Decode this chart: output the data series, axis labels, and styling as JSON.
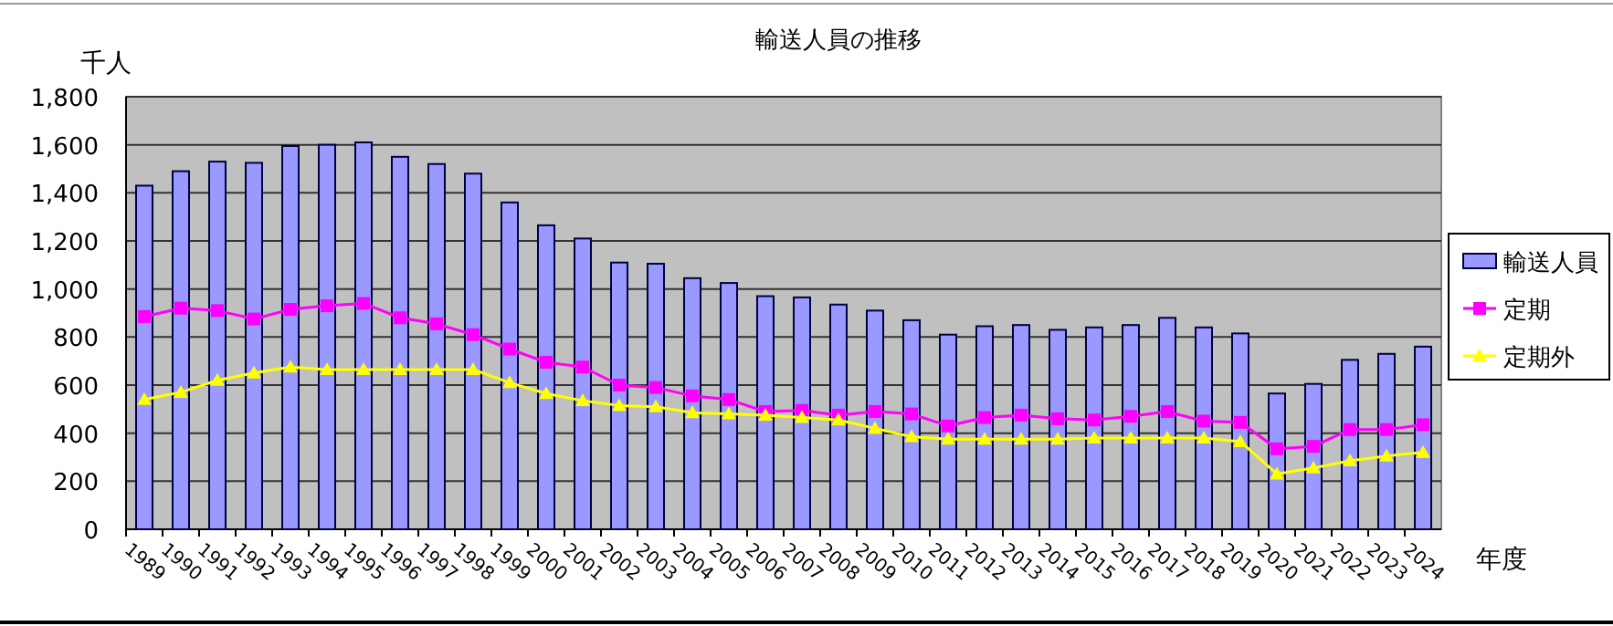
{
  "chart_data": {
    "type": "bar",
    "title": "輸送人員の推移",
    "ylabel": "千人",
    "xlabel": "年度",
    "categories": [
      "1989",
      "1990",
      "1991",
      "1992",
      "1993",
      "1994",
      "1995",
      "1996",
      "1997",
      "1998",
      "1999",
      "2000",
      "2001",
      "2002",
      "2003",
      "2004",
      "2005",
      "2006",
      "2007",
      "2008",
      "2009",
      "2010",
      "2011",
      "2012",
      "2013",
      "2014",
      "2015",
      "2016",
      "2017",
      "2018",
      "2019",
      "2020",
      "2021",
      "2022",
      "2023",
      "2024"
    ],
    "series": [
      {
        "name": "輸送人員",
        "color": "#9999ff",
        "values": [
          1430,
          1490,
          1530,
          1525,
          1595,
          1600,
          1610,
          1550,
          1520,
          1480,
          1360,
          1265,
          1210,
          1110,
          1105,
          1045,
          1025,
          970,
          965,
          935,
          910,
          870,
          810,
          845,
          850,
          830,
          840,
          850,
          880,
          840,
          815,
          565,
          605,
          705,
          730,
          760
        ]
      },
      {
        "name": "定期",
        "type": "line",
        "color": "#ff00ff",
        "marker": "square",
        "values": [
          885,
          920,
          910,
          875,
          915,
          930,
          940,
          880,
          855,
          810,
          750,
          695,
          675,
          600,
          590,
          555,
          540,
          490,
          495,
          475,
          490,
          480,
          430,
          465,
          475,
          460,
          455,
          470,
          490,
          450,
          445,
          335,
          345,
          415,
          415,
          435
        ]
      },
      {
        "name": "定期外",
        "type": "line",
        "color": "#ffff00",
        "marker": "triangle",
        "values": [
          540,
          570,
          620,
          650,
          675,
          665,
          665,
          665,
          665,
          665,
          610,
          565,
          535,
          515,
          510,
          485,
          480,
          475,
          465,
          455,
          420,
          385,
          375,
          375,
          375,
          375,
          380,
          380,
          380,
          380,
          365,
          230,
          255,
          285,
          305,
          320
        ]
      }
    ],
    "ylim": [
      0,
      1800
    ],
    "yticks": [
      0,
      200,
      400,
      600,
      800,
      {
        "value": 1000,
        "label": "1,000"
      },
      {
        "value": 1200,
        "label": "1,200"
      },
      {
        "value": 1400,
        "label": "1,400"
      },
      {
        "value": 1600,
        "label": "1,600"
      },
      {
        "value": 1800,
        "label": "1,800"
      }
    ],
    "grid": "y",
    "legend": "right"
  }
}
